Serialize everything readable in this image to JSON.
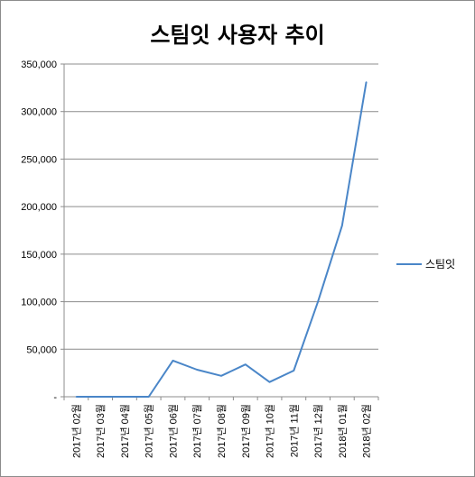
{
  "chart_data": {
    "type": "line",
    "title": "스팀잇 사용자 추이",
    "categories": [
      "2017년 02월",
      "2017년 03월",
      "2017년 04월",
      "2017년 05월",
      "2017년 06월",
      "2017년 07월",
      "2017년 08월",
      "2017년 09월",
      "2017년 10월",
      "2017년 11월",
      "2017년 12월",
      "2018년 01월",
      "2018년 02월"
    ],
    "series": [
      {
        "name": "스팀잇",
        "values": [
          0,
          0,
          0,
          0,
          38000,
          28500,
          22000,
          34000,
          15500,
          27500,
          100000,
          180000,
          331000
        ],
        "color": "#4a86c8"
      }
    ],
    "y_ticks": [
      "-",
      "50,000",
      "100,000",
      "150,000",
      "200,000",
      "250,000",
      "300,000",
      "350,000"
    ],
    "ylim": [
      0,
      350000
    ],
    "grid": true,
    "legend_position": "right"
  }
}
